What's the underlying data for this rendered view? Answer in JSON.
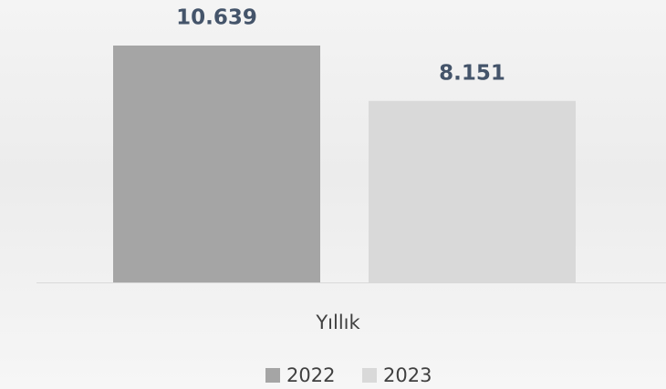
{
  "chart_data": {
    "type": "bar",
    "categories": [
      "Yıllık"
    ],
    "series": [
      {
        "name": "2022",
        "color": "#a5a5a5",
        "values": [
          10639
        ],
        "value_labels": [
          "10.639"
        ]
      },
      {
        "name": "2023",
        "color": "#d9d9d9",
        "values": [
          8151
        ],
        "value_labels": [
          "8.151"
        ]
      }
    ],
    "legend": "bottom"
  }
}
